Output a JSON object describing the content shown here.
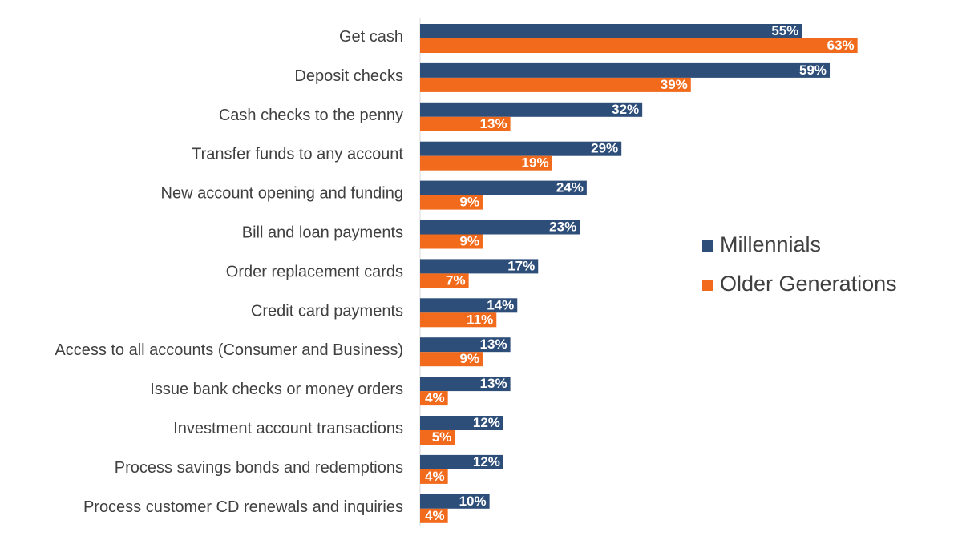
{
  "chart_data": {
    "type": "bar",
    "orientation": "horizontal",
    "categories": [
      "Get cash",
      "Deposit checks",
      "Cash checks to the penny",
      "Transfer funds to any account",
      "New account opening and funding",
      "Bill and loan payments",
      "Order replacement cards",
      "Credit card payments",
      "Access to all accounts (Consumer and Business)",
      "Issue bank checks or money orders",
      "Investment account transactions",
      "Process savings bonds and redemptions",
      "Process customer CD renewals and inquiries"
    ],
    "series": [
      {
        "name": "Millennials",
        "color": "#2e4e7a",
        "values": [
          55,
          59,
          32,
          29,
          24,
          23,
          17,
          14,
          13,
          13,
          12,
          12,
          10
        ],
        "labels": [
          "55%",
          "59%",
          "32%",
          "29%",
          "24%",
          "23%",
          "17%",
          "14%",
          "13%",
          "13%",
          "12%",
          "12%",
          "10%"
        ]
      },
      {
        "name": "Older Generations",
        "color": "#f26a1b",
        "values": [
          63,
          39,
          13,
          19,
          9,
          9,
          7,
          11,
          9,
          4,
          5,
          4,
          4
        ],
        "labels": [
          "63%",
          "39%",
          "13%",
          "19%",
          "9%",
          "9%",
          "7%",
          "11%",
          "9%",
          "4%",
          "5%",
          "4%",
          "4%"
        ]
      }
    ],
    "xlim": [
      0,
      67
    ],
    "axis_color": "#d9d9d9",
    "legend_position": "right"
  }
}
